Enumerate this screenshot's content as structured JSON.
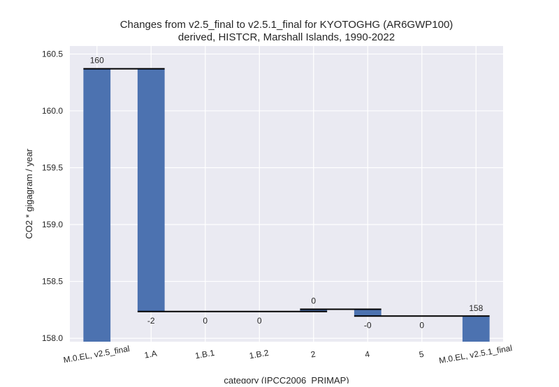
{
  "chart_data": {
    "type": "bar",
    "subtype": "waterfall",
    "title": "Changes from v2.5_final to v2.5.1_final for KYOTOGHG (AR6GWP100)",
    "subtitle": "derived, HISTCR, Marshall Islands, 1990-2022",
    "xlabel": "category (IPCC2006_PRIMAP)",
    "ylabel": "CO2 * gigagram / year",
    "ylim": [
      157.97,
      160.57
    ],
    "yticks": [
      "158.0",
      "158.5",
      "159.0",
      "159.5",
      "160.0",
      "160.5"
    ],
    "ytick_values": [
      158.0,
      158.5,
      159.0,
      159.5,
      160.0,
      160.5
    ],
    "grid": true,
    "categories": [
      "M.0.EL, v2.5_final",
      "1.A",
      "1.B.1",
      "1.B.2",
      "2",
      "4",
      "5",
      "M.0.EL, v2.5.1_final"
    ],
    "bars": [
      {
        "bottom": 157.97,
        "top": 160.37
      },
      {
        "bottom": 158.235,
        "top": 160.37
      },
      {
        "bottom": 158.235,
        "top": 158.235
      },
      {
        "bottom": 158.235,
        "top": 158.235
      },
      {
        "bottom": 158.235,
        "top": 158.255
      },
      {
        "bottom": 158.195,
        "top": 158.255
      },
      {
        "bottom": 158.195,
        "top": 158.195
      },
      {
        "bottom": 157.97,
        "top": 158.19
      }
    ],
    "connectors": [
      {
        "from": 0,
        "to": 1,
        "y": 160.37
      },
      {
        "from": 1,
        "to": 4,
        "y": 158.235
      },
      {
        "from": 4,
        "to": 5,
        "y": 158.255
      },
      {
        "from": 5,
        "to": 7,
        "y": 158.195
      }
    ],
    "labels": [
      {
        "index": 0,
        "text": "160",
        "y": 160.37,
        "pos": "above"
      },
      {
        "index": 1,
        "text": "-2",
        "y": 158.235,
        "pos": "below"
      },
      {
        "index": 2,
        "text": "0",
        "y": 158.235,
        "pos": "below"
      },
      {
        "index": 3,
        "text": "0",
        "y": 158.235,
        "pos": "below"
      },
      {
        "index": 4,
        "text": "0",
        "y": 158.255,
        "pos": "above"
      },
      {
        "index": 5,
        "text": "-0",
        "y": 158.195,
        "pos": "below"
      },
      {
        "index": 6,
        "text": "0",
        "y": 158.195,
        "pos": "below"
      },
      {
        "index": 7,
        "text": "158",
        "y": 158.19,
        "pos": "above"
      }
    ],
    "colors": {
      "bar": "#4c72b0",
      "plot_background": "#eaeaf2",
      "grid": "#ffffff",
      "connector": "#000000"
    }
  }
}
